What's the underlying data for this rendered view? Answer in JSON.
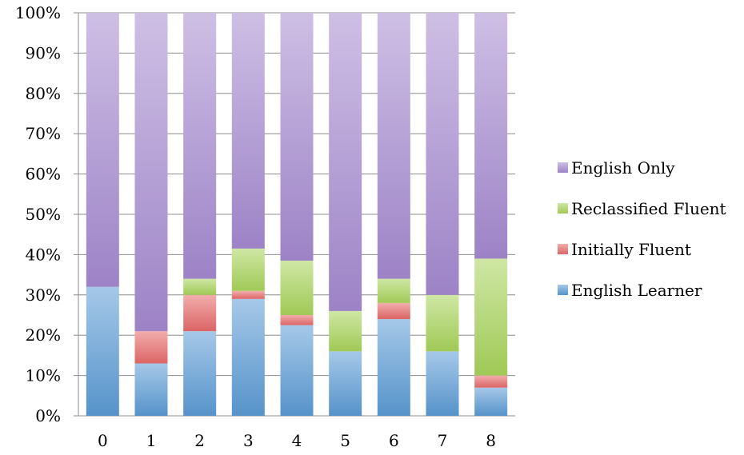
{
  "chart_data": {
    "type": "bar",
    "stacked": true,
    "percent": true,
    "categories": [
      "0",
      "1",
      "2",
      "3",
      "4",
      "5",
      "6",
      "7",
      "8"
    ],
    "series": [
      {
        "name": "English Learner",
        "color": "#5b9bd5",
        "values": [
          32,
          13,
          21,
          29,
          22.5,
          16,
          24,
          16,
          7
        ]
      },
      {
        "name": "Initially Fluent",
        "color": "#e86a6a",
        "values": [
          0,
          8,
          9,
          2,
          2.5,
          0,
          4,
          0,
          3
        ]
      },
      {
        "name": "Reclassified Fluent",
        "color": "#a8d45a",
        "values": [
          0,
          0,
          4,
          10.5,
          13.5,
          10,
          6,
          14,
          29
        ]
      },
      {
        "name": "English Only",
        "color": "#a58ad0",
        "values": [
          68,
          79,
          66,
          58.5,
          61.5,
          74,
          66,
          70,
          61
        ]
      }
    ],
    "y_ticks": [
      "0%",
      "10%",
      "20%",
      "30%",
      "40%",
      "50%",
      "60%",
      "70%",
      "80%",
      "90%",
      "100%"
    ],
    "ylim": [
      0,
      100
    ],
    "grid": true,
    "legend_position": "right",
    "legend_order": [
      "English Only",
      "Reclassified Fluent",
      "Initially Fluent",
      "English Learner"
    ],
    "title": "",
    "xlabel": "",
    "ylabel": ""
  }
}
